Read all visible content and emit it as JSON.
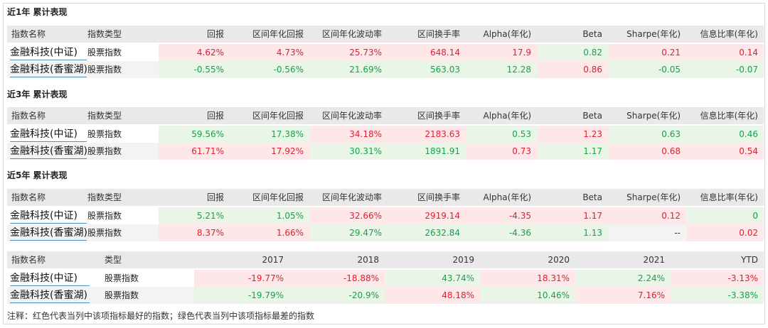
{
  "colors": {
    "best": "#e0202f",
    "worst": "#16a34a",
    "best_bg": "#fde7e9",
    "worst_bg": "#e8f5e7"
  },
  "headers": [
    "指数名称",
    "指数类型",
    "回报",
    "区间年化回报",
    "区间年化波动率",
    "区间换手率",
    "Alpha(年化)",
    "Beta",
    "Sharpe(年化)",
    "信息比率(年化)"
  ],
  "sections": [
    {
      "title": "近1年 累计表现",
      "rows": [
        {
          "name": "金融科技(中证)",
          "type": "股票指数",
          "values": [
            "4.62%",
            "4.73%",
            "25.73%",
            "648.14",
            "17.9",
            "0.82",
            "0.21",
            "0.14"
          ]
        },
        {
          "name": "金融科技(香蜜湖)",
          "type": "股票指数",
          "values": [
            "-0.55%",
            "-0.56%",
            "21.69%",
            "563.03",
            "12.28",
            "0.86",
            "-0.05",
            "-0.07"
          ]
        }
      ]
    },
    {
      "title": "近3年 累计表现",
      "rows": [
        {
          "name": "金融科技(中证)",
          "type": "股票指数",
          "values": [
            "59.56%",
            "17.38%",
            "34.18%",
            "2183.63",
            "0.53",
            "1.23",
            "0.63",
            "0.46"
          ]
        },
        {
          "name": "金融科技(香蜜湖)",
          "type": "股票指数",
          "values": [
            "61.71%",
            "17.92%",
            "30.31%",
            "1891.91",
            "0.73",
            "1.17",
            "0.68",
            "0.54"
          ]
        }
      ]
    },
    {
      "title": "近5年 累计表现",
      "rows": [
        {
          "name": "金融科技(中证)",
          "type": "股票指数",
          "values": [
            "5.21%",
            "1.05%",
            "32.66%",
            "2919.14",
            "-4.35",
            "1.17",
            "0.12",
            "0"
          ]
        },
        {
          "name": "金融科技(香蜜湖)",
          "type": "股票指数",
          "values": [
            "8.37%",
            "1.66%",
            "29.47%",
            "2632.84",
            "-4.36",
            "1.13",
            "--",
            "0.02"
          ]
        }
      ]
    }
  ],
  "yearly": {
    "headers": [
      "指数名称",
      "类型",
      "2017",
      "2018",
      "2019",
      "2020",
      "2021",
      "YTD"
    ],
    "rows": [
      {
        "name": "金融科技(中证)",
        "type": "股票指数",
        "values": [
          "-19.77%",
          "-18.88%",
          "43.74%",
          "18.31%",
          "2.24%",
          "-3.13%"
        ]
      },
      {
        "name": "金融科技(香蜜湖)",
        "type": "股票指数",
        "values": [
          "-19.79%",
          "-20.9%",
          "48.18%",
          "10.46%",
          "7.16%",
          "-3.38%"
        ]
      }
    ]
  },
  "note": "注释：红色代表当列中该项指标最好的指数；绿色代表当列中该项指标最差的指数"
}
